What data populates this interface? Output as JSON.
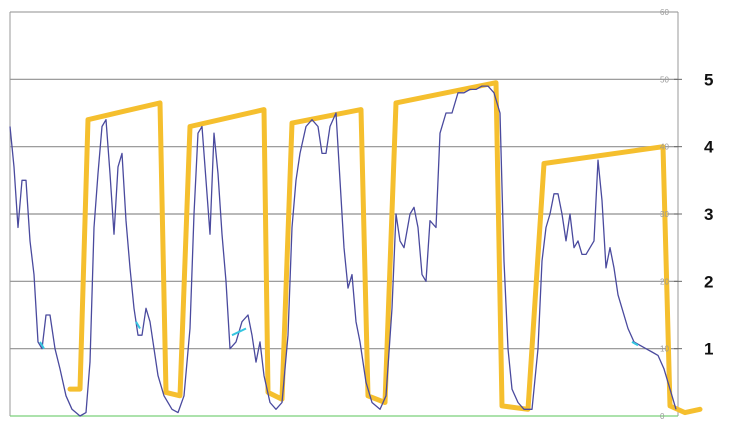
{
  "chart_data": {
    "type": "line",
    "title": "",
    "xlabel": "",
    "ylabel": "",
    "xlim": [
      0,
      730
    ],
    "ylim": [
      0,
      6
    ],
    "grid": true,
    "y_ticks": [
      "1",
      "2",
      "3",
      "4",
      "5"
    ],
    "y_ticks_faint": [
      "60",
      "50",
      "40",
      "30",
      "20",
      "10",
      "0"
    ],
    "colors": {
      "thick_series": "#f5bf2e",
      "thin_series": "#4a4a9e",
      "minor_accent": "#35c6e0",
      "grid": "#8f8f8f",
      "axis": "#999999",
      "baseline": "#7ad07a"
    },
    "series": [
      {
        "name": "",
        "color": "#f5bf2e",
        "points": [
          [
            70,
            0.4
          ],
          [
            80,
            0.4
          ],
          [
            88,
            4.4
          ],
          [
            160,
            4.65
          ],
          [
            166,
            0.35
          ],
          [
            180,
            0.3
          ],
          [
            190,
            4.3
          ],
          [
            264,
            4.55
          ],
          [
            268,
            0.35
          ],
          [
            282,
            0.25
          ],
          [
            292,
            4.35
          ],
          [
            361,
            4.55
          ],
          [
            368,
            0.3
          ],
          [
            385,
            0.2
          ],
          [
            396,
            4.65
          ],
          [
            496,
            4.95
          ],
          [
            502,
            0.15
          ],
          [
            528,
            0.1
          ],
          [
            544,
            3.75
          ],
          [
            663,
            4.0
          ],
          [
            670,
            0.15
          ],
          [
            685,
            0.05
          ],
          [
            700,
            0.1
          ]
        ]
      },
      {
        "name": "",
        "color": "#4a4a9e",
        "points": [
          [
            10,
            4.3
          ],
          [
            14,
            3.7
          ],
          [
            18,
            2.8
          ],
          [
            22,
            3.5
          ],
          [
            26,
            3.5
          ],
          [
            30,
            2.6
          ],
          [
            34,
            2.1
          ],
          [
            38,
            1.1
          ],
          [
            42,
            1.0
          ],
          [
            46,
            1.5
          ],
          [
            50,
            1.5
          ],
          [
            55,
            1.0
          ],
          [
            60,
            0.7
          ],
          [
            66,
            0.3
          ],
          [
            72,
            0.1
          ],
          [
            80,
            0.0
          ],
          [
            86,
            0.05
          ],
          [
            90,
            0.8
          ],
          [
            94,
            2.8
          ],
          [
            98,
            3.6
          ],
          [
            102,
            4.3
          ],
          [
            106,
            4.4
          ],
          [
            110,
            3.6
          ],
          [
            114,
            2.7
          ],
          [
            118,
            3.7
          ],
          [
            122,
            3.9
          ],
          [
            126,
            2.9
          ],
          [
            130,
            2.2
          ],
          [
            134,
            1.6
          ],
          [
            138,
            1.2
          ],
          [
            142,
            1.2
          ],
          [
            146,
            1.6
          ],
          [
            150,
            1.4
          ],
          [
            154,
            1.0
          ],
          [
            158,
            0.6
          ],
          [
            164,
            0.3
          ],
          [
            172,
            0.1
          ],
          [
            178,
            0.05
          ],
          [
            184,
            0.3
          ],
          [
            190,
            1.3
          ],
          [
            194,
            3.0
          ],
          [
            198,
            4.2
          ],
          [
            202,
            4.3
          ],
          [
            206,
            3.5
          ],
          [
            210,
            2.7
          ],
          [
            214,
            4.2
          ],
          [
            218,
            3.6
          ],
          [
            222,
            2.7
          ],
          [
            226,
            2.0
          ],
          [
            230,
            1.0
          ],
          [
            236,
            1.1
          ],
          [
            242,
            1.4
          ],
          [
            248,
            1.5
          ],
          [
            252,
            1.2
          ],
          [
            256,
            0.8
          ],
          [
            260,
            1.1
          ],
          [
            264,
            0.6
          ],
          [
            270,
            0.2
          ],
          [
            276,
            0.1
          ],
          [
            282,
            0.2
          ],
          [
            288,
            1.2
          ],
          [
            292,
            2.8
          ],
          [
            296,
            3.5
          ],
          [
            300,
            3.9
          ],
          [
            306,
            4.3
          ],
          [
            312,
            4.4
          ],
          [
            318,
            4.3
          ],
          [
            322,
            3.9
          ],
          [
            326,
            3.9
          ],
          [
            330,
            4.3
          ],
          [
            336,
            4.5
          ],
          [
            340,
            3.5
          ],
          [
            344,
            2.5
          ],
          [
            348,
            1.9
          ],
          [
            352,
            2.1
          ],
          [
            356,
            1.4
          ],
          [
            360,
            1.1
          ],
          [
            366,
            0.5
          ],
          [
            372,
            0.2
          ],
          [
            380,
            0.1
          ],
          [
            386,
            0.3
          ],
          [
            392,
            1.6
          ],
          [
            396,
            3.0
          ],
          [
            400,
            2.6
          ],
          [
            404,
            2.5
          ],
          [
            410,
            3.0
          ],
          [
            414,
            3.1
          ],
          [
            418,
            2.8
          ],
          [
            422,
            2.1
          ],
          [
            426,
            2.0
          ],
          [
            430,
            2.9
          ],
          [
            436,
            2.8
          ],
          [
            440,
            4.2
          ],
          [
            446,
            4.5
          ],
          [
            452,
            4.5
          ],
          [
            458,
            4.8
          ],
          [
            464,
            4.8
          ],
          [
            470,
            4.85
          ],
          [
            476,
            4.85
          ],
          [
            482,
            4.9
          ],
          [
            488,
            4.9
          ],
          [
            494,
            4.8
          ],
          [
            500,
            4.5
          ],
          [
            504,
            2.3
          ],
          [
            508,
            1.0
          ],
          [
            512,
            0.4
          ],
          [
            518,
            0.2
          ],
          [
            524,
            0.1
          ],
          [
            532,
            0.1
          ],
          [
            538,
            1.0
          ],
          [
            542,
            2.3
          ],
          [
            546,
            2.8
          ],
          [
            550,
            3.0
          ],
          [
            554,
            3.3
          ],
          [
            558,
            3.3
          ],
          [
            562,
            3.0
          ],
          [
            566,
            2.6
          ],
          [
            570,
            3.0
          ],
          [
            574,
            2.5
          ],
          [
            578,
            2.6
          ],
          [
            582,
            2.4
          ],
          [
            586,
            2.4
          ],
          [
            590,
            2.5
          ],
          [
            594,
            2.6
          ],
          [
            598,
            3.8
          ],
          [
            602,
            3.2
          ],
          [
            606,
            2.2
          ],
          [
            610,
            2.5
          ],
          [
            614,
            2.2
          ],
          [
            618,
            1.8
          ],
          [
            622,
            1.6
          ],
          [
            628,
            1.3
          ],
          [
            634,
            1.1
          ],
          [
            640,
            1.05
          ],
          [
            646,
            1.0
          ],
          [
            652,
            0.95
          ],
          [
            658,
            0.9
          ],
          [
            664,
            0.7
          ],
          [
            670,
            0.4
          ],
          [
            676,
            0.1
          ]
        ]
      }
    ]
  }
}
